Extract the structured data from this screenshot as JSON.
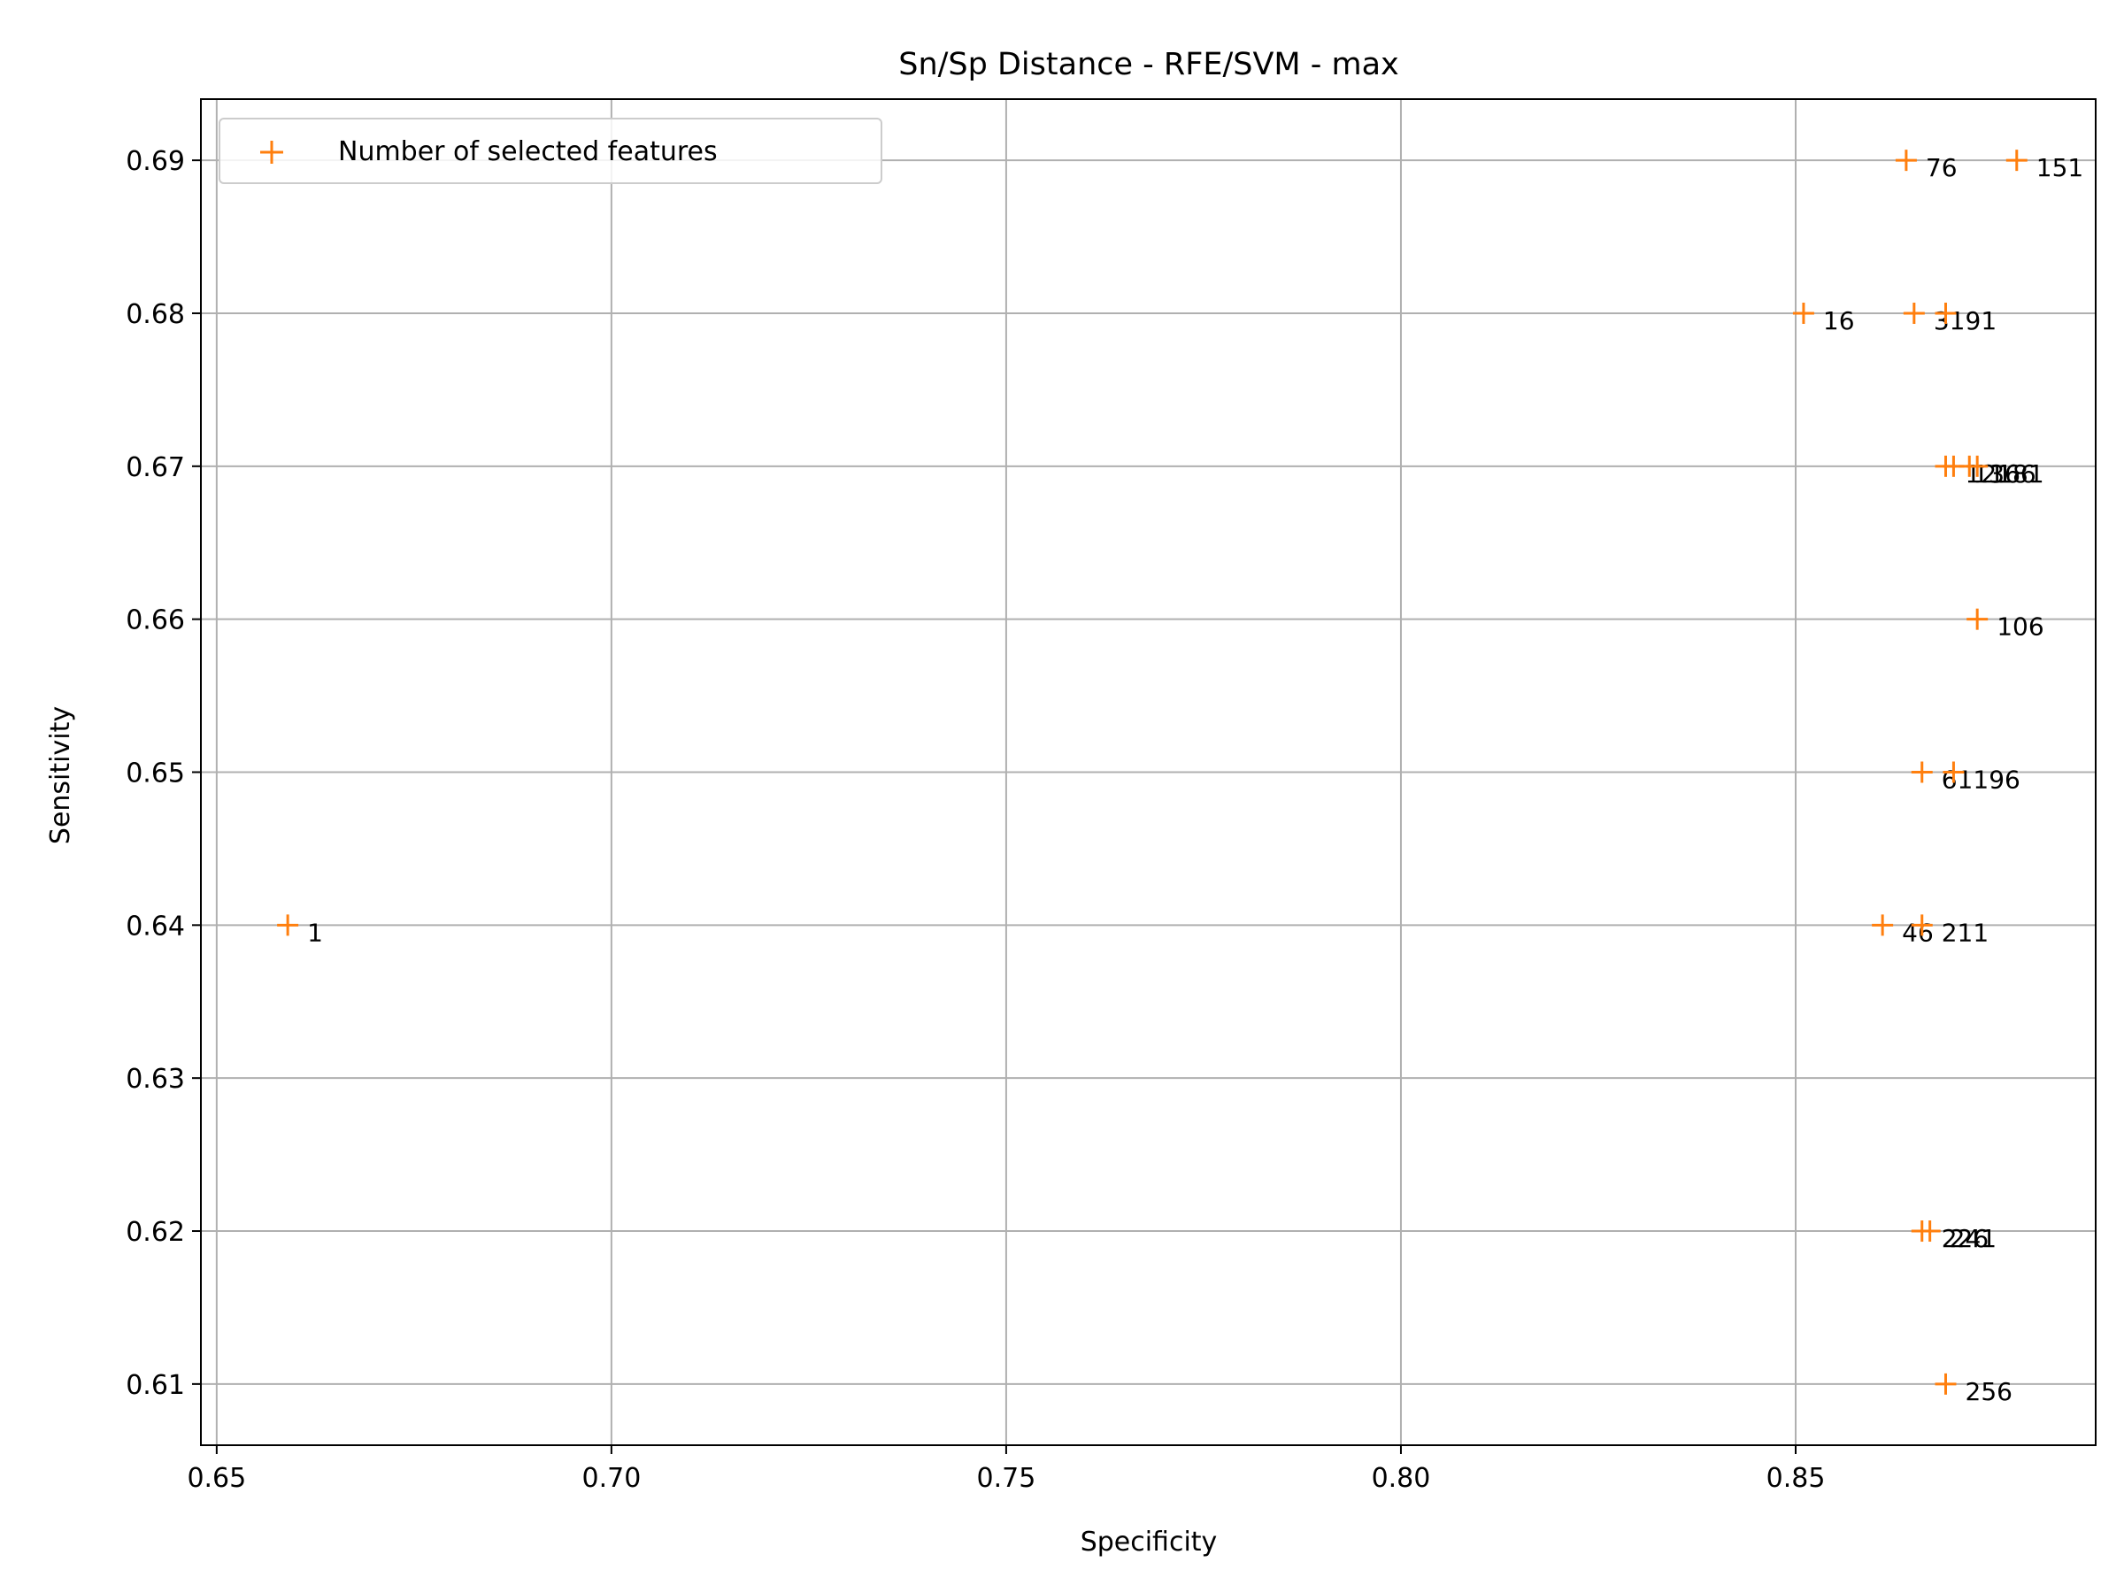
{
  "chart_data": {
    "type": "scatter",
    "title": "Sn/Sp Distance - RFE/SVM - max",
    "xlabel": "Specificity",
    "ylabel": "Sensitivity",
    "xlim": [
      0.648,
      0.888
    ],
    "ylim": [
      0.606,
      0.694
    ],
    "xticks": [
      "0.65",
      "0.70",
      "0.75",
      "0.80",
      "0.85"
    ],
    "yticks": [
      "0.61",
      "0.62",
      "0.63",
      "0.64",
      "0.65",
      "0.66",
      "0.67",
      "0.68",
      "0.69"
    ],
    "grid": true,
    "legend": {
      "position": "top-left",
      "entries": [
        "Number of selected features"
      ]
    },
    "marker": "+",
    "color": "#ff7f0e",
    "points": [
      {
        "label": "1",
        "x": 0.659,
        "y": 0.64
      },
      {
        "label": "16",
        "x": 0.851,
        "y": 0.68
      },
      {
        "label": "31",
        "x": 0.865,
        "y": 0.68
      },
      {
        "label": "46",
        "x": 0.861,
        "y": 0.64
      },
      {
        "label": "61",
        "x": 0.866,
        "y": 0.65
      },
      {
        "label": "76",
        "x": 0.864,
        "y": 0.69
      },
      {
        "label": "91",
        "x": 0.869,
        "y": 0.68
      },
      {
        "label": "106",
        "x": 0.873,
        "y": 0.66
      },
      {
        "label": "121",
        "x": 0.869,
        "y": 0.67
      },
      {
        "label": "136",
        "x": 0.87,
        "y": 0.67
      },
      {
        "label": "151",
        "x": 0.878,
        "y": 0.69
      },
      {
        "label": "166",
        "x": 0.872,
        "y": 0.67
      },
      {
        "label": "181",
        "x": 0.873,
        "y": 0.67
      },
      {
        "label": "196",
        "x": 0.87,
        "y": 0.65
      },
      {
        "label": "211",
        "x": 0.866,
        "y": 0.64
      },
      {
        "label": "226",
        "x": 0.866,
        "y": 0.62
      },
      {
        "label": "241",
        "x": 0.867,
        "y": 0.62
      },
      {
        "label": "256",
        "x": 0.869,
        "y": 0.61
      }
    ]
  }
}
